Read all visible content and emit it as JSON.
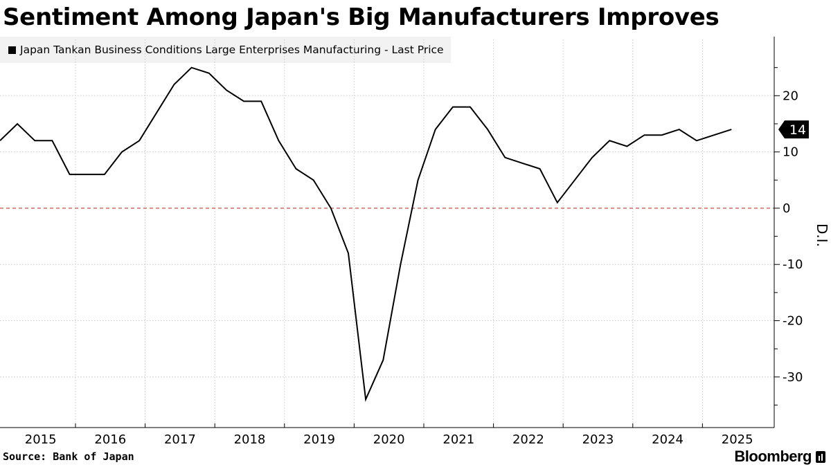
{
  "title": "Sentiment Among Japan's Big Manufacturers Improves",
  "legend": {
    "label": "Japan Tankan Business Conditions Large Enterprises Manufacturing - Last Price"
  },
  "source": "Source: Bank of Japan",
  "brand": "Bloomberg",
  "colors": {
    "line": "#000000",
    "zero_line": "#c0392b",
    "grid": "#c8c8c8",
    "legend_bg": "#f2f2f2"
  },
  "chart_data": {
    "type": "line",
    "title": "Sentiment Among Japan's Big Manufacturers Improves",
    "xlabel": "",
    "ylabel": "D.I.",
    "ylim": [
      -39,
      30
    ],
    "yticks": [
      -30,
      -20,
      -10,
      0,
      10,
      20
    ],
    "x_tick_labels": [
      "2015",
      "2016",
      "2017",
      "2018",
      "2019",
      "2020",
      "2021",
      "2022",
      "2023",
      "2024",
      "2025"
    ],
    "grid": true,
    "legend_position": "top-left",
    "last_value_label": "14",
    "series": [
      {
        "name": "Japan Tankan Business Conditions Large Enterprises Manufacturing - Last Price",
        "x": [
          "2014-12",
          "2015-03",
          "2015-06",
          "2015-09",
          "2015-12",
          "2016-03",
          "2016-06",
          "2016-09",
          "2016-12",
          "2017-03",
          "2017-06",
          "2017-09",
          "2017-12",
          "2018-03",
          "2018-06",
          "2018-09",
          "2018-12",
          "2019-03",
          "2019-06",
          "2019-09",
          "2019-12",
          "2020-03",
          "2020-06",
          "2020-09",
          "2020-12",
          "2021-03",
          "2021-06",
          "2021-09",
          "2021-12",
          "2022-03",
          "2022-06",
          "2022-09",
          "2022-12",
          "2023-03",
          "2023-06",
          "2023-09",
          "2023-12",
          "2024-03",
          "2024-06",
          "2024-09",
          "2024-12",
          "2025-03",
          "2025-06"
        ],
        "values": [
          12,
          15,
          12,
          12,
          6,
          6,
          6,
          10,
          12,
          17,
          22,
          25,
          24,
          21,
          19,
          19,
          12,
          7,
          5,
          0,
          -8,
          -34,
          -27,
          -10,
          5,
          14,
          18,
          18,
          14,
          9,
          8,
          7,
          1,
          5,
          9,
          12,
          11,
          13,
          13,
          14,
          12,
          13,
          14
        ]
      }
    ]
  }
}
